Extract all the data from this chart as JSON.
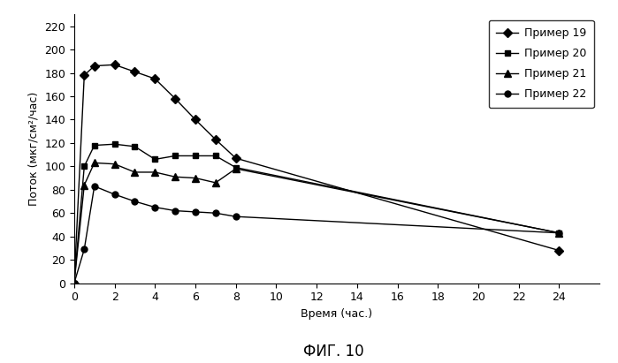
{
  "title": "ФИГ. 10",
  "xlabel": "Время (час.)",
  "ylabel": "Поток (мкг/см²/час)",
  "xlim": [
    0,
    26
  ],
  "ylim": [
    0,
    230
  ],
  "yticks": [
    0,
    20,
    40,
    60,
    80,
    100,
    120,
    140,
    160,
    180,
    200,
    220
  ],
  "xticks": [
    0,
    2,
    4,
    6,
    8,
    10,
    12,
    14,
    16,
    18,
    20,
    22,
    24
  ],
  "series": [
    {
      "label": "Пример 19",
      "marker": "D",
      "x": [
        0,
        0.5,
        1,
        2,
        3,
        4,
        5,
        6,
        7,
        8,
        24
      ],
      "y": [
        0,
        178,
        186,
        187,
        181,
        175,
        158,
        140,
        123,
        107,
        28
      ]
    },
    {
      "label": "Пример 20",
      "marker": "s",
      "x": [
        0,
        0.5,
        1,
        2,
        3,
        4,
        5,
        6,
        7,
        8,
        24
      ],
      "y": [
        0,
        100,
        118,
        119,
        117,
        106,
        109,
        109,
        109,
        99,
        43
      ]
    },
    {
      "label": "Пример 21",
      "marker": "^",
      "x": [
        0,
        0.5,
        1,
        2,
        3,
        4,
        5,
        6,
        7,
        8,
        24
      ],
      "y": [
        0,
        84,
        103,
        102,
        95,
        95,
        91,
        90,
        86,
        98,
        43
      ]
    },
    {
      "label": "Пример 22",
      "marker": "o",
      "x": [
        0,
        0.5,
        1,
        2,
        3,
        4,
        5,
        6,
        7,
        8,
        24
      ],
      "y": [
        0,
        29,
        83,
        76,
        70,
        65,
        62,
        61,
        60,
        57,
        43
      ]
    }
  ],
  "markersizes": {
    "D": 5,
    "s": 5,
    "^": 6,
    "o": 5
  },
  "background_color": "#ffffff",
  "legend_loc": "upper right",
  "title_fontsize": 12,
  "label_fontsize": 9,
  "tick_fontsize": 9,
  "legend_fontsize": 9,
  "linewidth": 1.0
}
